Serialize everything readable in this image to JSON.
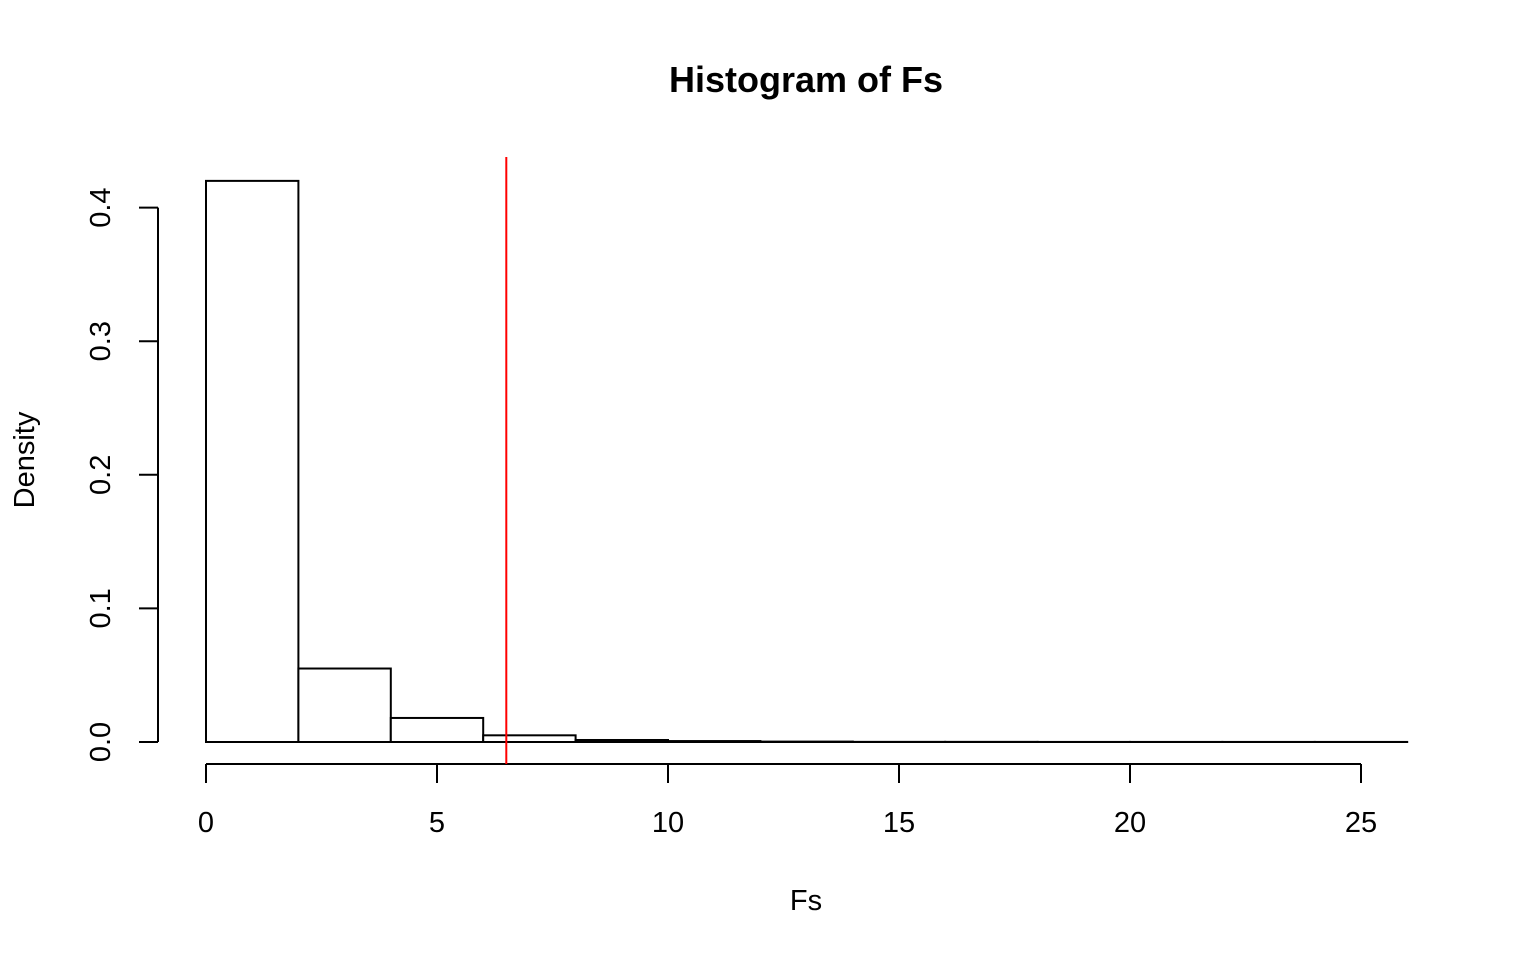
{
  "chart_data": {
    "type": "bar",
    "title": "Histogram of Fs",
    "xlabel": "Fs",
    "ylabel": "Density",
    "xlim": [
      0,
      26
    ],
    "ylim": [
      0,
      0.42
    ],
    "bin_edges": [
      0,
      2,
      4,
      6,
      8,
      10,
      12,
      14,
      16,
      18,
      20,
      22,
      24,
      26
    ],
    "values": [
      0.42,
      0.055,
      0.018,
      0.005,
      0.0015,
      0.0007,
      0.0003,
      0.0001,
      0.0001,
      5e-05,
      5e-05,
      5e-05,
      5e-05
    ],
    "x_ticks": [
      0,
      5,
      10,
      15,
      20,
      25
    ],
    "x_tick_labels": [
      "0",
      "5",
      "10",
      "15",
      "20",
      "25"
    ],
    "y_ticks": [
      0.0,
      0.1,
      0.2,
      0.3,
      0.4
    ],
    "y_tick_labels": [
      "0.0",
      "0.1",
      "0.2",
      "0.3",
      "0.4"
    ],
    "reference_line": {
      "x": 6.5,
      "color": "#ff0000"
    },
    "bar_fill": "#ffffff",
    "bar_stroke": "#000000",
    "grid": false
  }
}
